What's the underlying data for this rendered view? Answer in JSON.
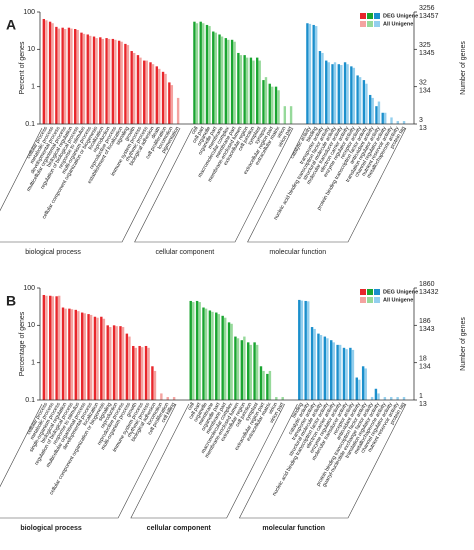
{
  "chart_data": [
    {
      "type": "bar",
      "panel": "A",
      "ylabel": "Percent of genes",
      "y2label": "Number of genes",
      "log_scale": true,
      "ylim": [
        0.1,
        100
      ],
      "yticks": [
        0.1,
        1,
        10,
        100
      ],
      "groups": [
        {
          "name": "biological process",
          "categories": [
            "cellular process",
            "metabolic process",
            "developmental process",
            "multicellular organismal process",
            "biological regulation",
            "regulation of biological process",
            "response to stimulus",
            "multi-organism process",
            "cellular component organization or biogenesis",
            "localization",
            "reproduction",
            "reproductive process",
            "establishment of localization",
            "signaling",
            "growth",
            "immune system process",
            "rhythmic process",
            "biological adhesion",
            "death",
            "cell proliferation",
            "locomotion",
            "pigmentation"
          ]
        },
        {
          "name": "cellular component",
          "categories": [
            "cell",
            "cell part",
            "organelle",
            "organelle part",
            "membrane",
            "macromolecular complex",
            "membrane part",
            "membrane-enclosed lumen",
            "extracellular region",
            "cell junction",
            "symplast",
            "synapse",
            "extracellular region part",
            "extracellular matrix",
            "virion",
            "virion part"
          ]
        },
        {
          "name": "molecular function",
          "categories": [
            "catalytic activity",
            "binding",
            "transporter activity",
            "nucleic acid binding transcription factor activity",
            "structural molecule activity",
            "molecular transducer activity",
            "electron carrier activity",
            "enzyme regulator activity",
            "receptor activity",
            "protein binding transcription factor activity",
            "antioxidant activity",
            "translation regulator activity",
            "channel regulator activity",
            "nutrient reservoir activity",
            "metallochaperone activity",
            "protein tag"
          ]
        }
      ],
      "series": [
        {
          "name": "DEG Unigene",
          "colors": [
            "#e8262b",
            "#1aa531",
            "#1b8fcc"
          ],
          "y2tick_color": "#2b3a8f",
          "y2ticks": [
            {
              "value": 100,
              "label": "3256"
            },
            {
              "value": 10,
              "label": "325"
            },
            {
              "value": 1,
              "label": "32"
            },
            {
              "value": 0.1,
              "label": "3"
            }
          ],
          "values": [
            65,
            55,
            40,
            38,
            38,
            35,
            28,
            25,
            22,
            21,
            20,
            19,
            17,
            14,
            9,
            7,
            5,
            4.5,
            3.5,
            2.5,
            1.3,
            null,
            55,
            55,
            45,
            30,
            25,
            20,
            18,
            8,
            7,
            6,
            6,
            1.5,
            1.2,
            1,
            null,
            null,
            50,
            45,
            9,
            5,
            4,
            4,
            4.5,
            3.5,
            2,
            1.5,
            0.6,
            0.3,
            0.2,
            null,
            null,
            null
          ]
        },
        {
          "name": "All Unigene",
          "colors": [
            "#f4a3a0",
            "#96d99a",
            "#93cfee"
          ],
          "y2tick_color": "#c0282d",
          "y2ticks": [
            {
              "value": 100,
              "label": "13457"
            },
            {
              "value": 10,
              "label": "1345"
            },
            {
              "value": 1,
              "label": "134"
            },
            {
              "value": 0.1,
              "label": "13"
            }
          ],
          "values": [
            60,
            50,
            36,
            35,
            36,
            33,
            26,
            23,
            20,
            19,
            19,
            18,
            16,
            13,
            8,
            6,
            5,
            4,
            3,
            2.2,
            1.1,
            0.5,
            50,
            50,
            42,
            28,
            22,
            18,
            16,
            7,
            6,
            5,
            5,
            1.8,
            1,
            0.8,
            0.3,
            0.3,
            48,
            42,
            8,
            4.5,
            4.5,
            3.8,
            4,
            3.2,
            1.8,
            1.2,
            0.5,
            0.4,
            0.2,
            0.15,
            0.12,
            0.12
          ]
        }
      ]
    },
    {
      "type": "bar",
      "panel": "B",
      "ylabel": "Percentage of genes",
      "y2label": "Number of genes",
      "log_scale": true,
      "ylim": [
        0.1,
        100
      ],
      "yticks": [
        0.1,
        1,
        10,
        100
      ],
      "groups": [
        {
          "name": "biological process",
          "categories": [
            "cellular process",
            "metabolic process",
            "single-organism process",
            "biological regulation",
            "regulation of biological process",
            "response to stimulus",
            "multicellular organismal process",
            "developmental process",
            "localization",
            "cellular component organization or biogenesis",
            "signaling",
            "reproduction",
            "reproductive process",
            "multi-organism process",
            "growth",
            "immune system process",
            "rhythmic process",
            "biological adhesion",
            "locomotion",
            "cell proliferation",
            "cell killing"
          ]
        },
        {
          "name": "cellular component",
          "categories": [
            "cell",
            "cell part",
            "organelle",
            "membrane",
            "organelle part",
            "membrane part",
            "macromolecular complex",
            "membrane-enclosed lumen",
            "extracellular region",
            "cell junction",
            "symplast",
            "extracellular region part",
            "extracellular matrix",
            "virion",
            "virion part"
          ]
        },
        {
          "name": "molecular function",
          "categories": [
            "binding",
            "catalytic activity",
            "transporter activity",
            "structural molecule activity",
            "nucleic acid binding transcription factor activity",
            "electron carrier activity",
            "enzyme regulator activity",
            "molecular transducer activity",
            "receptor activity",
            "antioxidant activity",
            "protein binding transcription factor activity",
            "guanyl-nucleotide exchange factor activity",
            "translation regulator activity",
            "metallochaperone activity",
            "channel regulator activity",
            "nutrient reservoir activity",
            "protein tag"
          ]
        }
      ],
      "series": [
        {
          "name": "DEG Unigene",
          "colors": [
            "#e8262b",
            "#1aa531",
            "#1b8fcc"
          ],
          "y2tick_color": "#111111",
          "y2ticks": [
            {
              "value": 100,
              "label": "1860"
            },
            {
              "value": 10,
              "label": "186"
            },
            {
              "value": 1,
              "label": "18"
            },
            {
              "value": 0.1,
              "label": "1"
            }
          ],
          "values": [
            65,
            62,
            60,
            30,
            28,
            26,
            22,
            20,
            17,
            17,
            10,
            10,
            9.5,
            6,
            2.8,
            2.8,
            2.8,
            0.8,
            null,
            null,
            null,
            45,
            45,
            30,
            25,
            22,
            18,
            12,
            5,
            4,
            3.5,
            3.5,
            0.8,
            0.5,
            null,
            null,
            48,
            45,
            9,
            6,
            5,
            4,
            3,
            2.5,
            2.5,
            0.4,
            0.8,
            null,
            0.2,
            null,
            null,
            null,
            null
          ]
        },
        {
          "name": "All Unigene",
          "colors": [
            "#f4a3a0",
            "#96d99a",
            "#93cfee"
          ],
          "y2tick_color": "#111111",
          "y2ticks": [
            {
              "value": 100,
              "label": "13432"
            },
            {
              "value": 10,
              "label": "1343"
            },
            {
              "value": 1,
              "label": "134"
            },
            {
              "value": 0.1,
              "label": "13"
            }
          ],
          "values": [
            62,
            60,
            62,
            28,
            27,
            24,
            21,
            19,
            16,
            15,
            9,
            9.5,
            9,
            5,
            2.5,
            2.6,
            2.5,
            0.6,
            0.15,
            0.12,
            0.12,
            42,
            42,
            28,
            23,
            20,
            16,
            11,
            4.5,
            5,
            3,
            3,
            0.6,
            0.6,
            0.12,
            0.12,
            46,
            44,
            8,
            5.5,
            4.5,
            3.5,
            3,
            2.3,
            2.2,
            0.35,
            0.7,
            0.12,
            0.15,
            0.12,
            0.12,
            0.12,
            0.12
          ]
        }
      ]
    }
  ]
}
